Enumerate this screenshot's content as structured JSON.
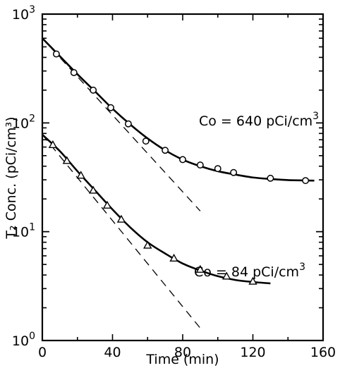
{
  "chart_data": {
    "type": "scatter",
    "title": "",
    "xlabel": "Time (min)",
    "ylabel": "T₂ Conc. (pCi/cm³)",
    "xlim": [
      0,
      160
    ],
    "ylim": [
      1,
      1000
    ],
    "yscale": "log",
    "grid": false,
    "x_ticks": [
      "0",
      "40",
      "80",
      "120",
      "160"
    ],
    "y_ticks": [
      {
        "base": "10",
        "exp": "0",
        "value": 1
      },
      {
        "base": "10",
        "exp": "1",
        "value": 10
      },
      {
        "base": "10",
        "exp": "2",
        "value": 100
      },
      {
        "base": "10",
        "exp": "3",
        "value": 1000
      }
    ],
    "series": [
      {
        "marker": "circle",
        "annotation": {
          "prefix": "Co = 640 pCi/cm",
          "sup": "3"
        },
        "points": [
          {
            "x": 8,
            "y": 430
          },
          {
            "x": 18,
            "y": 290
          },
          {
            "x": 29,
            "y": 200
          },
          {
            "x": 39,
            "y": 138
          },
          {
            "x": 49,
            "y": 98
          },
          {
            "x": 59,
            "y": 68
          },
          {
            "x": 70,
            "y": 56
          },
          {
            "x": 80,
            "y": 46
          },
          {
            "x": 90,
            "y": 41
          },
          {
            "x": 100,
            "y": 38
          },
          {
            "x": 109,
            "y": 35
          },
          {
            "x": 130,
            "y": 31
          },
          {
            "x": 150,
            "y": 29.5
          }
        ],
        "fit_curve": [
          {
            "x": 0,
            "y": 600
          },
          {
            "x": 10,
            "y": 410
          },
          {
            "x": 20,
            "y": 280
          },
          {
            "x": 30,
            "y": 195
          },
          {
            "x": 40,
            "y": 135
          },
          {
            "x": 50,
            "y": 97
          },
          {
            "x": 60,
            "y": 72
          },
          {
            "x": 70,
            "y": 56
          },
          {
            "x": 80,
            "y": 46
          },
          {
            "x": 90,
            "y": 40
          },
          {
            "x": 100,
            "y": 36
          },
          {
            "x": 110,
            "y": 33.5
          },
          {
            "x": 120,
            "y": 31.5
          },
          {
            "x": 130,
            "y": 30.5
          },
          {
            "x": 140,
            "y": 29.8
          },
          {
            "x": 155,
            "y": 29.5
          }
        ],
        "extrapolation": [
          {
            "x": 0,
            "y": 600
          },
          {
            "x": 90,
            "y": 15.5
          }
        ]
      },
      {
        "marker": "triangle",
        "annotation": {
          "prefix": "Co = 84 pCi/cm",
          "sup": "3"
        },
        "points": [
          {
            "x": 6,
            "y": 63
          },
          {
            "x": 14,
            "y": 45
          },
          {
            "x": 22,
            "y": 33
          },
          {
            "x": 29,
            "y": 24
          },
          {
            "x": 37,
            "y": 17.5
          },
          {
            "x": 45,
            "y": 13
          },
          {
            "x": 60,
            "y": 7.5
          },
          {
            "x": 75,
            "y": 5.7
          },
          {
            "x": 90,
            "y": 4.5
          },
          {
            "x": 105,
            "y": 3.9
          },
          {
            "x": 120,
            "y": 3.5
          }
        ],
        "fit_curve": [
          {
            "x": 0,
            "y": 78
          },
          {
            "x": 10,
            "y": 55
          },
          {
            "x": 20,
            "y": 36
          },
          {
            "x": 30,
            "y": 24
          },
          {
            "x": 40,
            "y": 16
          },
          {
            "x": 50,
            "y": 11
          },
          {
            "x": 60,
            "y": 8
          },
          {
            "x": 70,
            "y": 6.3
          },
          {
            "x": 80,
            "y": 5.1
          },
          {
            "x": 90,
            "y": 4.4
          },
          {
            "x": 100,
            "y": 3.9
          },
          {
            "x": 110,
            "y": 3.6
          },
          {
            "x": 120,
            "y": 3.45
          },
          {
            "x": 130,
            "y": 3.35
          }
        ],
        "extrapolation": [
          {
            "x": 0,
            "y": 78
          },
          {
            "x": 90,
            "y": 1.3
          }
        ]
      }
    ]
  }
}
